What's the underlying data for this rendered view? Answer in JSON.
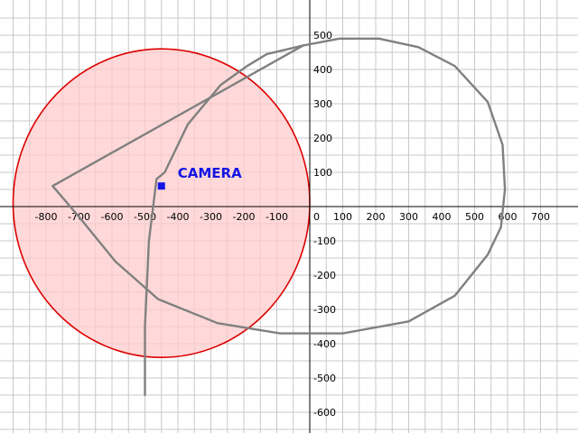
{
  "chart_data": {
    "type": "scatter",
    "xlim": [
      -900,
      780
    ],
    "ylim": [
      -660,
      560
    ],
    "grid": true,
    "grid_step": 50,
    "x_ticks": [
      -800,
      -700,
      -600,
      -500,
      -400,
      -300,
      -200,
      -100,
      0,
      100,
      200,
      300,
      400,
      500,
      600,
      700
    ],
    "y_ticks": [
      500,
      400,
      300,
      200,
      100,
      0,
      -100,
      -200,
      -300,
      -400,
      -500,
      -600
    ],
    "colors": {
      "grid": "#c8c8c8",
      "axis": "#000000",
      "path": "#808080",
      "circle_stroke": "#dd0000",
      "circle_fill": "#ffcccc",
      "camera": "#1414e6"
    },
    "coverage_circle": {
      "cx": -450,
      "cy": 10,
      "r": 450
    },
    "camera": {
      "label": "CAMERA",
      "x": -450,
      "y": 60
    },
    "paths": [
      {
        "closed": true,
        "points": [
          [
            -20,
            470
          ],
          [
            90,
            490
          ],
          [
            210,
            490
          ],
          [
            330,
            465
          ],
          [
            440,
            410
          ],
          [
            540,
            305
          ],
          [
            585,
            180
          ],
          [
            592,
            50
          ],
          [
            580,
            -60
          ],
          [
            540,
            -140
          ],
          [
            440,
            -260
          ],
          [
            300,
            -335
          ],
          [
            100,
            -370
          ],
          [
            -90,
            -370
          ],
          [
            -280,
            -340
          ],
          [
            -460,
            -270
          ],
          [
            -590,
            -160
          ],
          [
            -700,
            -30
          ],
          [
            -780,
            60
          ]
        ]
      },
      {
        "closed": false,
        "points": [
          [
            -500,
            -550
          ],
          [
            -500,
            -350
          ],
          [
            -488,
            -100
          ],
          [
            -465,
            80
          ],
          [
            -440,
            100
          ],
          [
            -370,
            240
          ],
          [
            -270,
            355
          ],
          [
            -190,
            410
          ],
          [
            -130,
            445
          ],
          [
            -20,
            470
          ]
        ]
      }
    ]
  }
}
